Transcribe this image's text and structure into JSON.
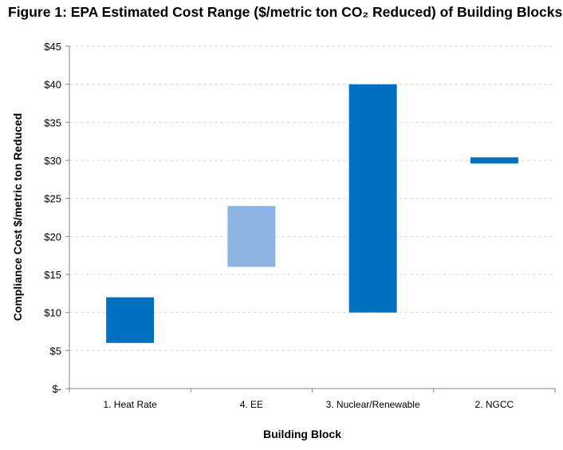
{
  "chart_data": {
    "type": "bar",
    "title": "Figure 1: EPA Estimated Cost Range ($/metric ton CO₂ Reduced) of Building Blocks",
    "xlabel": "Building Block",
    "ylabel": "Compliance Cost $/metric ton Reduced",
    "categories": [
      "1. Heat Rate",
      "4. EE",
      "3. Nuclear/Renewable",
      "2. NGCC"
    ],
    "ranges": [
      {
        "low": 6,
        "high": 12
      },
      {
        "low": 16,
        "high": 24
      },
      {
        "low": 10,
        "high": 40
      },
      {
        "low": 29.6,
        "high": 30.4
      }
    ],
    "bar_colors": [
      "#0070C0",
      "#8DB4E2",
      "#0070C0",
      "#0070C0"
    ],
    "ylim": [
      0,
      45
    ],
    "ytick_values": [
      0,
      5,
      10,
      15,
      20,
      25,
      30,
      35,
      40,
      45
    ],
    "ytick_labels": [
      "$-",
      "$5",
      "$10",
      "$15",
      "$20",
      "$25",
      "$30",
      "$35",
      "$40",
      "$45"
    ],
    "grid": true,
    "legend": "none"
  }
}
